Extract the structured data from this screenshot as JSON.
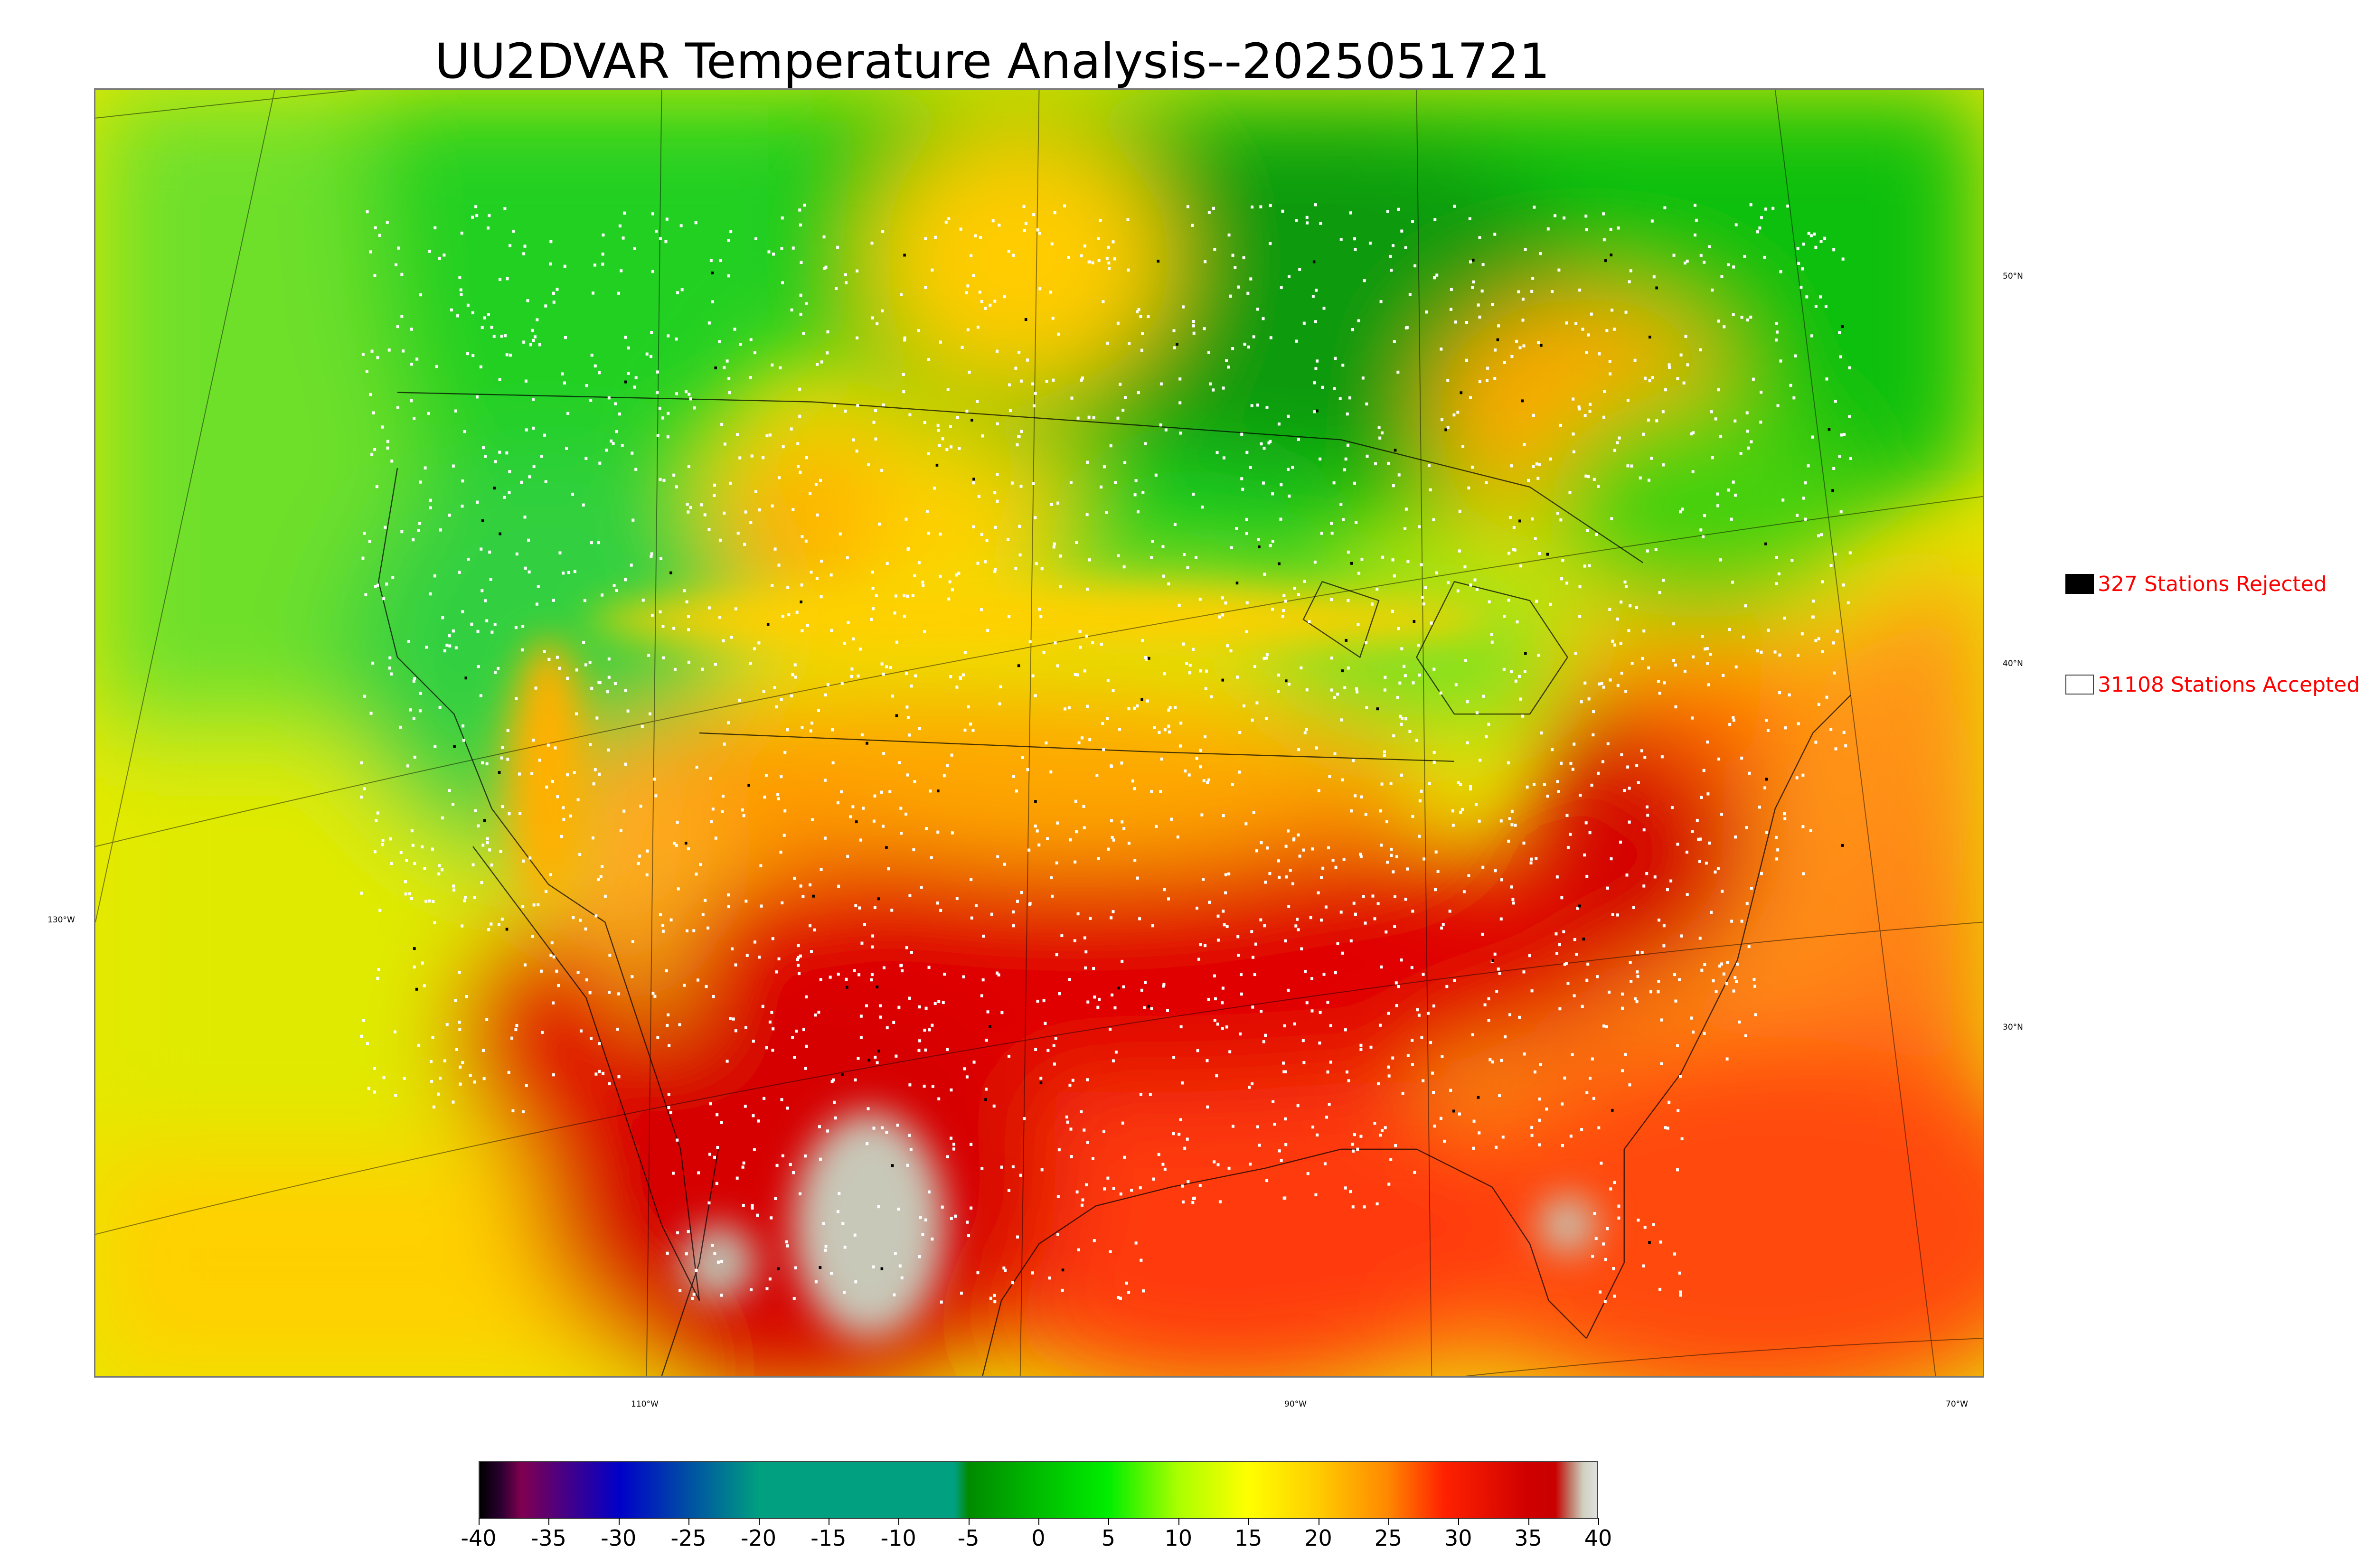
{
  "title": "UU2DVAR Temperature Analysis--2025051721",
  "map": {
    "longitude_labels": [
      "130°W",
      "110°W",
      "90°W",
      "70°W"
    ],
    "latitude_labels": [
      "50°N",
      "40°N",
      "30°N"
    ],
    "colors": {
      "warm_red": "#d90000",
      "ocean_orange": "#ff5a1a",
      "pacific_yellow": "#e8e800",
      "cool_green": "#10c010",
      "canada_green": "#0a9a0a",
      "station_accepted": "#ffffff",
      "station_rejected": "#000000"
    }
  },
  "legend": {
    "rejected": {
      "label": "327 Stations Rejected",
      "count": 327,
      "swatch": "#000000"
    },
    "accepted": {
      "label": "31108 Stations Accepted",
      "count": 31108,
      "swatch": "#ffffff"
    }
  },
  "colorbar": {
    "min": -40,
    "max": 40,
    "tick_labels": [
      "-40",
      "-35",
      "-30",
      "-25",
      "-20",
      "-15",
      "-10",
      "-5",
      "0",
      "5",
      "10",
      "15",
      "20",
      "25",
      "30",
      "35",
      "40"
    ],
    "stops": [
      {
        "value": -40,
        "color": "#000000"
      },
      {
        "value": -38.5,
        "color": "#2a0030"
      },
      {
        "value": -37,
        "color": "#800050"
      },
      {
        "value": -30,
        "color": "#0000c8"
      },
      {
        "value": -20,
        "color": "#00a080"
      },
      {
        "value": -6,
        "color": "#00a080"
      },
      {
        "value": -5,
        "color": "#008a00"
      },
      {
        "value": 5,
        "color": "#00ee00"
      },
      {
        "value": 10,
        "color": "#aaff00"
      },
      {
        "value": 15,
        "color": "#ffff00"
      },
      {
        "value": 20,
        "color": "#ffcc00"
      },
      {
        "value": 25,
        "color": "#ff8800"
      },
      {
        "value": 29,
        "color": "#ff2200"
      },
      {
        "value": 35,
        "color": "#d00000"
      },
      {
        "value": 37,
        "color": "#c80000"
      },
      {
        "value": 38,
        "color": "#c07060"
      },
      {
        "value": 39,
        "color": "#d0d0c0"
      },
      {
        "value": 40,
        "color": "#e0e0e0"
      }
    ]
  }
}
